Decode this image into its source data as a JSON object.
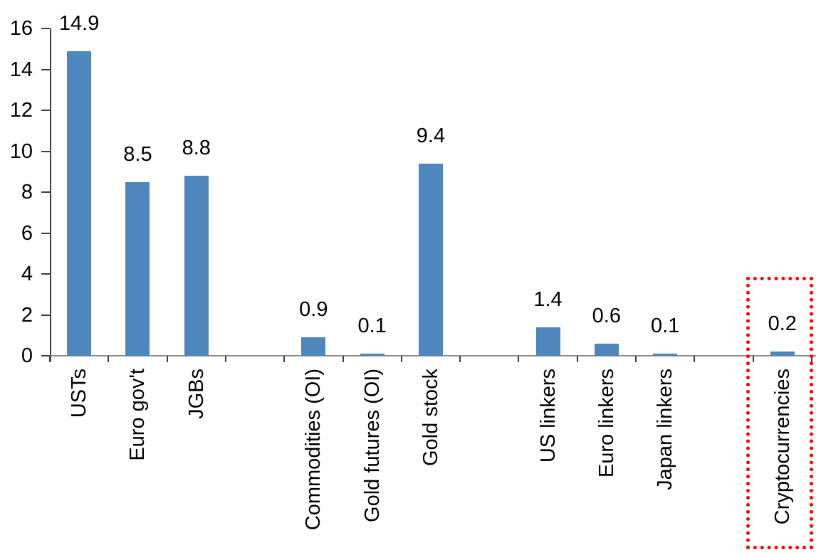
{
  "chart_data": {
    "type": "bar",
    "title": "",
    "xlabel": "",
    "ylabel": "",
    "categories": [
      "USTs",
      "Euro gov't",
      "JGBs",
      "Commodities (OI)",
      "Gold futures (OI)",
      "Gold stock",
      "US linkers",
      "Euro linkers",
      "Japan linkers",
      "Cryptocurrencies"
    ],
    "values": [
      14.9,
      8.5,
      8.8,
      0.9,
      0.1,
      9.4,
      1.4,
      0.6,
      0.1,
      0.2
    ],
    "data_labels": [
      "14.9",
      "8.5",
      "8.8",
      "0.9",
      "0.1",
      "9.4",
      "1.4",
      "0.6",
      "0.1",
      "0.2"
    ],
    "group_sizes": [
      3,
      3,
      3,
      1
    ],
    "ylim": [
      0,
      16
    ],
    "ytick_step": 2,
    "yticks": [
      "0",
      "2",
      "4",
      "6",
      "8",
      "10",
      "12",
      "14",
      "16"
    ],
    "grid": false,
    "legend": false,
    "bar_color": "#4E86BD",
    "axis_color": "#3f3f3f",
    "baseline_color": "#8c8c8c",
    "text_color": "#000000",
    "highlight": {
      "category": "Cryptocurrencies",
      "box_color": "#FF0000",
      "box_style": "dotted"
    }
  }
}
